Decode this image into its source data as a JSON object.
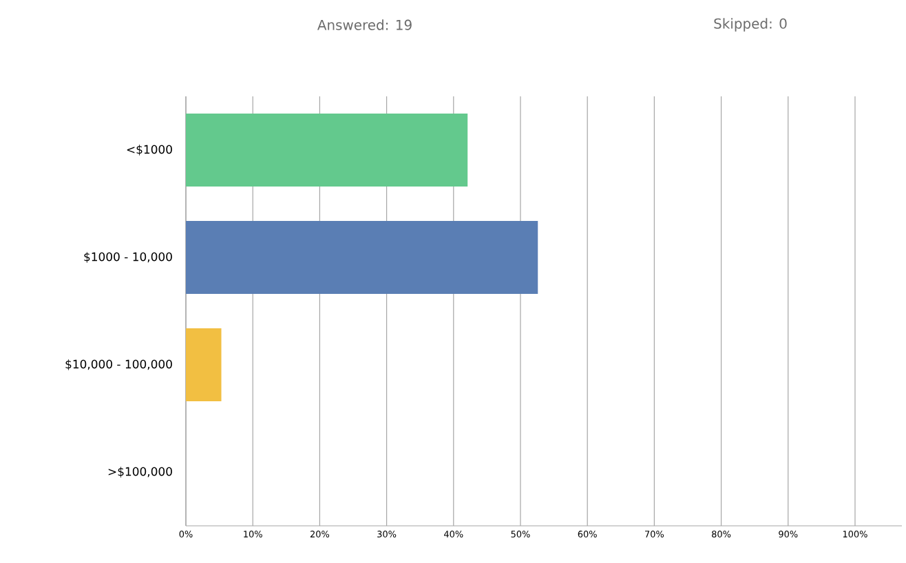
{
  "chart_data": {
    "type": "bar",
    "orientation": "horizontal",
    "annotations": [
      "Answered: 19",
      "Skipped: 0"
    ],
    "categories": [
      "<$1000",
      "$1000 - 10,000",
      "$10,000 - 100,000",
      ">$100,000"
    ],
    "values": [
      42.1,
      52.6,
      5.3,
      0
    ],
    "colors": [
      "#63c98d",
      "#5a7eb4",
      "#f2bf42",
      "#9b59b6"
    ],
    "xlim": [
      0,
      107
    ],
    "xticks": [
      {
        "value": 0,
        "label": "0%"
      },
      {
        "value": 10,
        "label": "10%"
      },
      {
        "value": 20,
        "label": "20%"
      },
      {
        "value": 30,
        "label": "30%"
      },
      {
        "value": 40,
        "label": "40%"
      },
      {
        "value": 50,
        "label": "50%"
      },
      {
        "value": 60,
        "label": "60%"
      },
      {
        "value": 70,
        "label": "70%"
      },
      {
        "value": 80,
        "label": "80%"
      },
      {
        "value": 90,
        "label": "90%"
      },
      {
        "value": 100,
        "label": "100%"
      }
    ],
    "grid": "x"
  }
}
